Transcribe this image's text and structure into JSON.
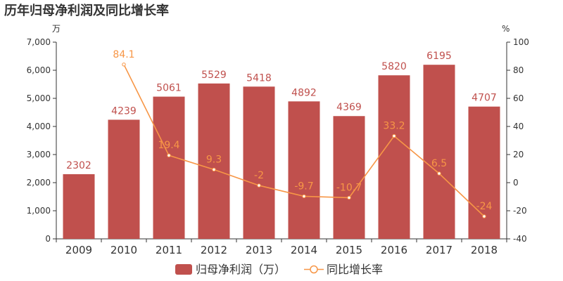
{
  "chart_data": {
    "type": "bar",
    "title": "历年归母净利润及同比增长率",
    "categories": [
      "2009",
      "2010",
      "2011",
      "2012",
      "2013",
      "2014",
      "2015",
      "2016",
      "2017",
      "2018"
    ],
    "y_left_unit": "万",
    "y_right_unit": "%",
    "y_left_range": [
      0,
      7000
    ],
    "y_right_range": [
      -40,
      100
    ],
    "y_left_ticks": [
      "0",
      "1,000",
      "2,000",
      "3,000",
      "4,000",
      "5,000",
      "6,000",
      "7,000"
    ],
    "y_right_ticks": [
      "-40",
      "-20",
      "0",
      "20",
      "40",
      "60",
      "80",
      "100"
    ],
    "grid": false,
    "legend_position": "bottom",
    "series": [
      {
        "name": "归母净利润（万）",
        "type": "bar",
        "axis": "left",
        "color": "#c0504d",
        "label_color": "#c0504d",
        "values": [
          2302,
          4239,
          5061,
          5529,
          5418,
          4892,
          4369,
          5820,
          6195,
          4707
        ],
        "labels": [
          "2302",
          "4239",
          "5061",
          "5529",
          "5418",
          "4892",
          "4369",
          "5820",
          "6195",
          "4707"
        ]
      },
      {
        "name": "同比增长率",
        "type": "line",
        "axis": "right",
        "color": "#f79646",
        "label_color": "#f79646",
        "values": [
          null,
          84.1,
          19.4,
          9.3,
          -2,
          -9.7,
          -10.7,
          33.2,
          6.5,
          -24
        ],
        "labels": [
          "",
          "84.1",
          "19.4",
          "9.3",
          "-2",
          "-9.7",
          "-10.7",
          "33.2",
          "6.5",
          "-24"
        ]
      }
    ]
  }
}
